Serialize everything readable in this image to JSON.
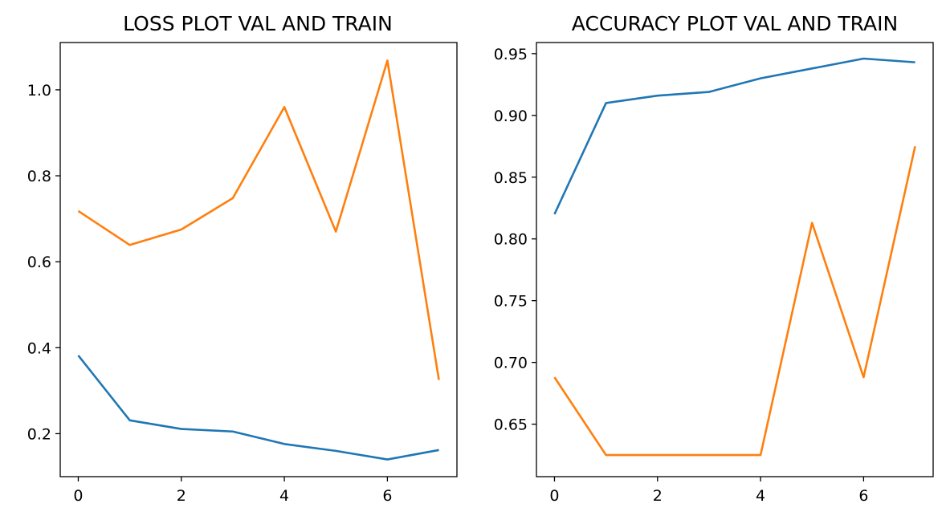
{
  "colors": {
    "train": "#1f77b4",
    "val": "#ff7f0e",
    "axes": "#000000",
    "background": "#ffffff"
  },
  "chart_data": [
    {
      "type": "line",
      "title": "LOSS PLOT VAL AND TRAIN",
      "xlabel": "",
      "ylabel": "",
      "x": [
        0,
        1,
        2,
        3,
        4,
        5,
        6,
        7
      ],
      "xticks": [
        0,
        2,
        4,
        6
      ],
      "xtick_labels": [
        "0",
        "2",
        "4",
        "6"
      ],
      "yticks": [
        0.2,
        0.4,
        0.6,
        0.8,
        1.0
      ],
      "ytick_labels": [
        "0.2",
        "0.4",
        "0.6",
        "0.8",
        "1.0"
      ],
      "xlim": [
        -0.35,
        7.35
      ],
      "ylim": [
        0.1,
        1.11
      ],
      "grid": false,
      "series": [
        {
          "values": [
            0.382,
            0.231,
            0.211,
            0.205,
            0.176,
            0.16,
            0.14,
            0.162
          ],
          "color": "#1f77b4"
        },
        {
          "values": [
            0.718,
            0.639,
            0.675,
            0.748,
            0.96,
            0.67,
            1.068,
            0.325
          ],
          "color": "#ff7f0e"
        }
      ]
    },
    {
      "type": "line",
      "title": "ACCURACY PLOT VAL AND TRAIN",
      "xlabel": "",
      "ylabel": "",
      "x": [
        0,
        1,
        2,
        3,
        4,
        5,
        6,
        7
      ],
      "xticks": [
        0,
        2,
        4,
        6
      ],
      "xtick_labels": [
        "0",
        "2",
        "4",
        "6"
      ],
      "yticks": [
        0.65,
        0.7,
        0.75,
        0.8,
        0.85,
        0.9,
        0.95
      ],
      "ytick_labels": [
        "0.65",
        "0.70",
        "0.75",
        "0.80",
        "0.85",
        "0.90",
        "0.95"
      ],
      "xlim": [
        -0.35,
        7.35
      ],
      "ylim": [
        0.6075,
        0.959
      ],
      "grid": false,
      "series": [
        {
          "values": [
            0.82,
            0.91,
            0.916,
            0.919,
            0.93,
            0.938,
            0.946,
            0.943
          ],
          "color": "#1f77b4"
        },
        {
          "values": [
            0.688,
            0.625,
            0.625,
            0.625,
            0.625,
            0.813,
            0.688,
            0.875
          ],
          "color": "#ff7f0e"
        }
      ]
    }
  ]
}
